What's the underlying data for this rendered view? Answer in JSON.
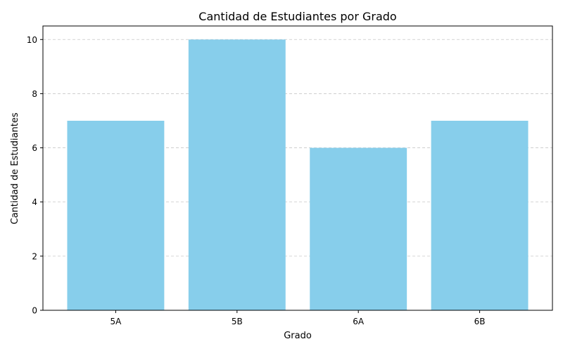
{
  "chart_data": {
    "type": "bar",
    "title": "Cantidad de Estudiantes por Grado",
    "xlabel": "Grado",
    "ylabel": "Cantidad de Estudiantes",
    "categories": [
      "5A",
      "5B",
      "6A",
      "6B"
    ],
    "values": [
      7,
      10,
      6,
      7
    ],
    "ylim": [
      0,
      10.5
    ],
    "yticks": [
      "0",
      "2",
      "4",
      "6",
      "8",
      "10"
    ],
    "grid": "y-dashed",
    "colors": {
      "bar": "#87CEEB",
      "grid": "#c8c8c8",
      "axis": "#000000"
    }
  }
}
